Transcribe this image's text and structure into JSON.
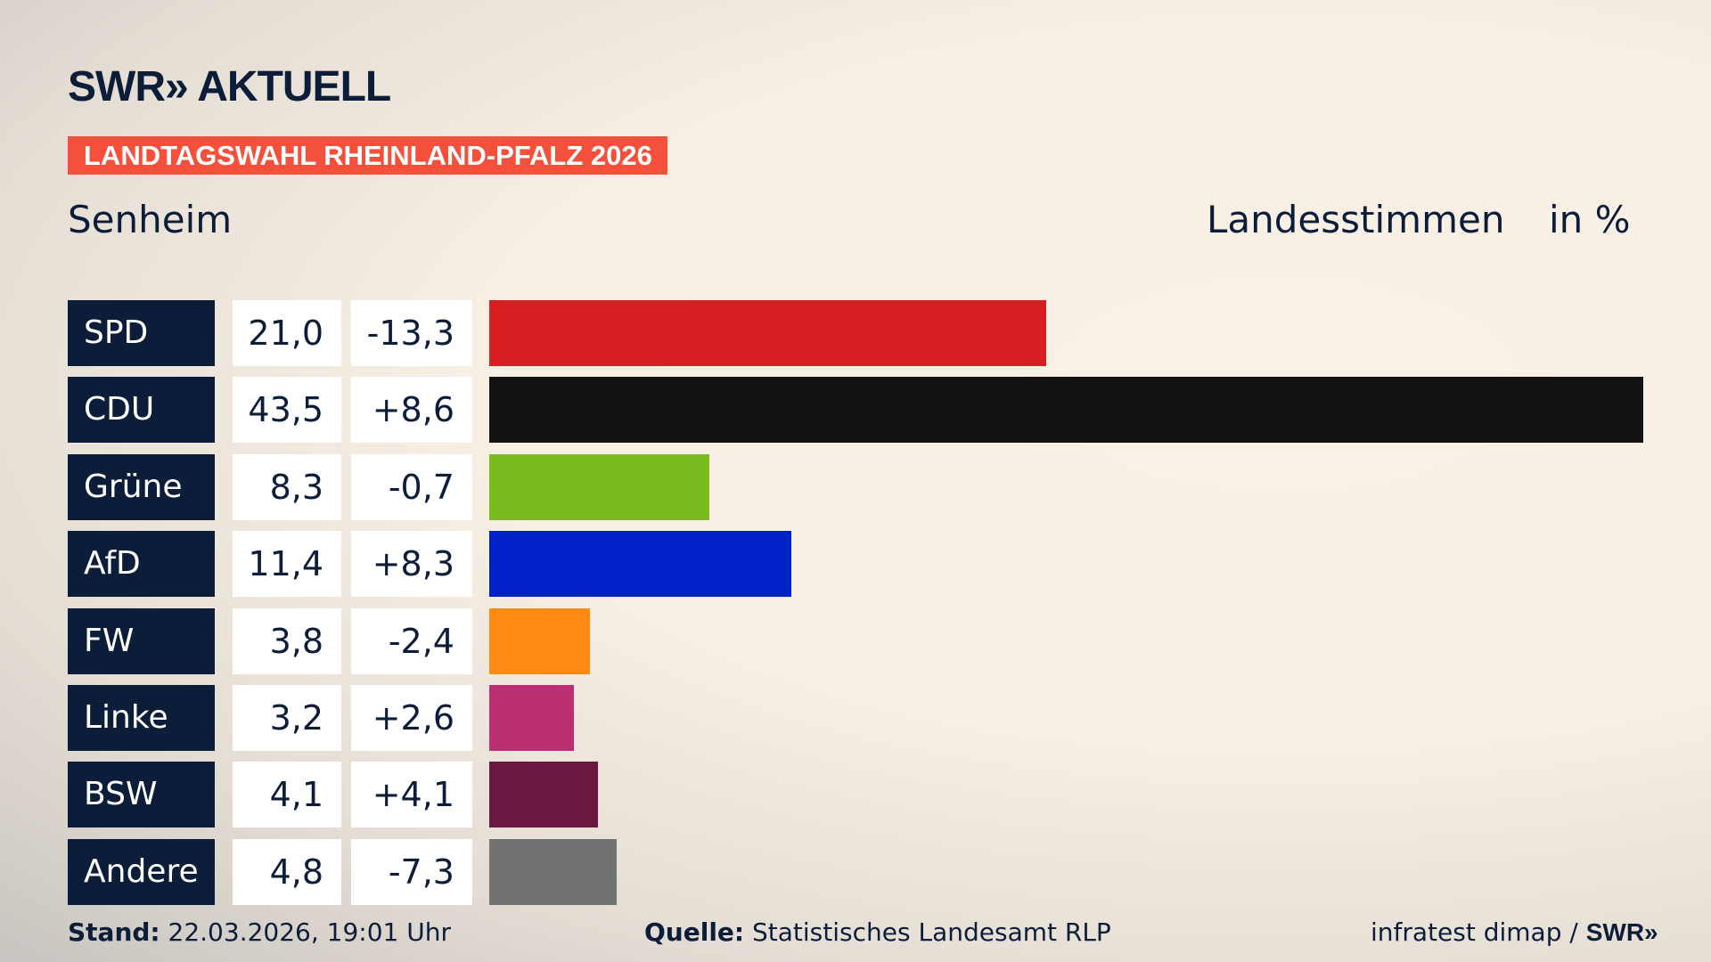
{
  "header": {
    "logo": "SWR» AKTUELL",
    "badge": "LANDTAGSWAHL RHEINLAND-PFALZ 2026",
    "place": "Senheim",
    "measure": "Landesstimmen",
    "unit": "in %"
  },
  "chart_data": {
    "type": "bar",
    "orientation": "horizontal",
    "xlim": [
      0,
      43.5
    ],
    "categories": [
      "SPD",
      "CDU",
      "Grüne",
      "AfD",
      "FW",
      "Linke",
      "BSW",
      "Andere"
    ],
    "values": [
      21.0,
      43.5,
      8.3,
      11.4,
      3.8,
      3.2,
      4.1,
      4.8
    ],
    "value_labels": [
      "21,0",
      "43,5",
      "8,3",
      "11,4",
      "3,8",
      "3,2",
      "4,1",
      "4,8"
    ],
    "diff_labels": [
      "-13,3",
      "+8,6",
      "-0,7",
      "+8,3",
      "-2,4",
      "+2,6",
      "+4,1",
      "-7,3"
    ],
    "diffs": [
      -13.3,
      8.6,
      -0.7,
      8.3,
      -2.4,
      2.6,
      4.1,
      -7.3
    ],
    "colors": [
      "#d71f22",
      "#121212",
      "#78bc1e",
      "#0020c8",
      "#ff8a14",
      "#bc2f73",
      "#6a183f",
      "#727272"
    ]
  },
  "footer": {
    "stand_label": "Stand:",
    "stand": "22.03.2026, 19:01 Uhr",
    "source_label": "Quelle:",
    "source": "Statistisches Landesamt RLP",
    "credit": "infratest dimap / ",
    "credit_logo": "SWR»"
  }
}
